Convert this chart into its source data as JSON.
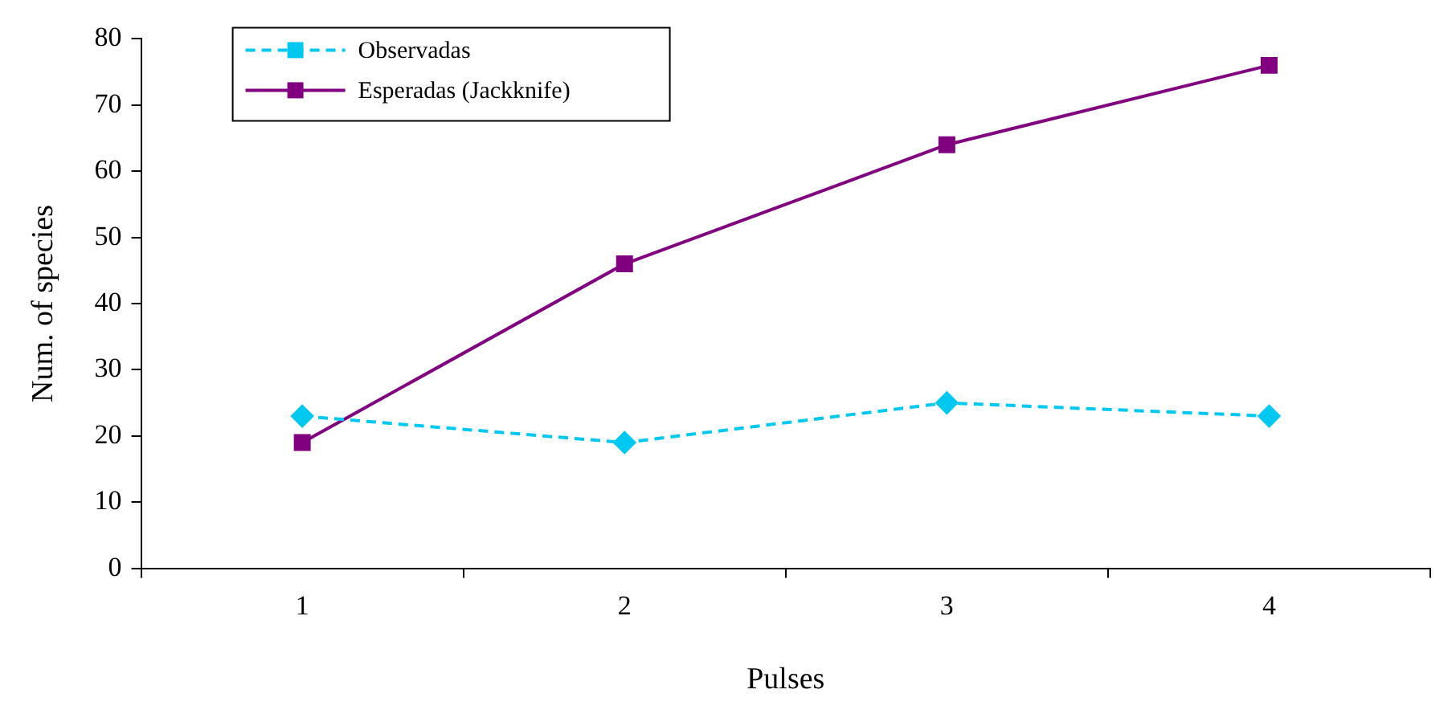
{
  "chart_data": {
    "type": "line",
    "xlabel": "Pulses",
    "ylabel": "Num. of species",
    "categories": [
      "1",
      "2",
      "3",
      "4"
    ],
    "series": [
      {
        "name": "Observadas",
        "color": "#00c8f0",
        "values": [
          23,
          19,
          25,
          23
        ],
        "marker": "diamond",
        "line_style": "dashed"
      },
      {
        "name": "Esperadas (Jackknife)",
        "color": "#800080",
        "values": [
          19,
          46,
          64,
          76
        ],
        "marker": "square",
        "line_style": "solid"
      }
    ],
    "ylim": [
      0,
      80
    ],
    "yticks": [
      0,
      10,
      20,
      30,
      40,
      50,
      60,
      70,
      80
    ],
    "grid": false,
    "legend": "top left"
  }
}
